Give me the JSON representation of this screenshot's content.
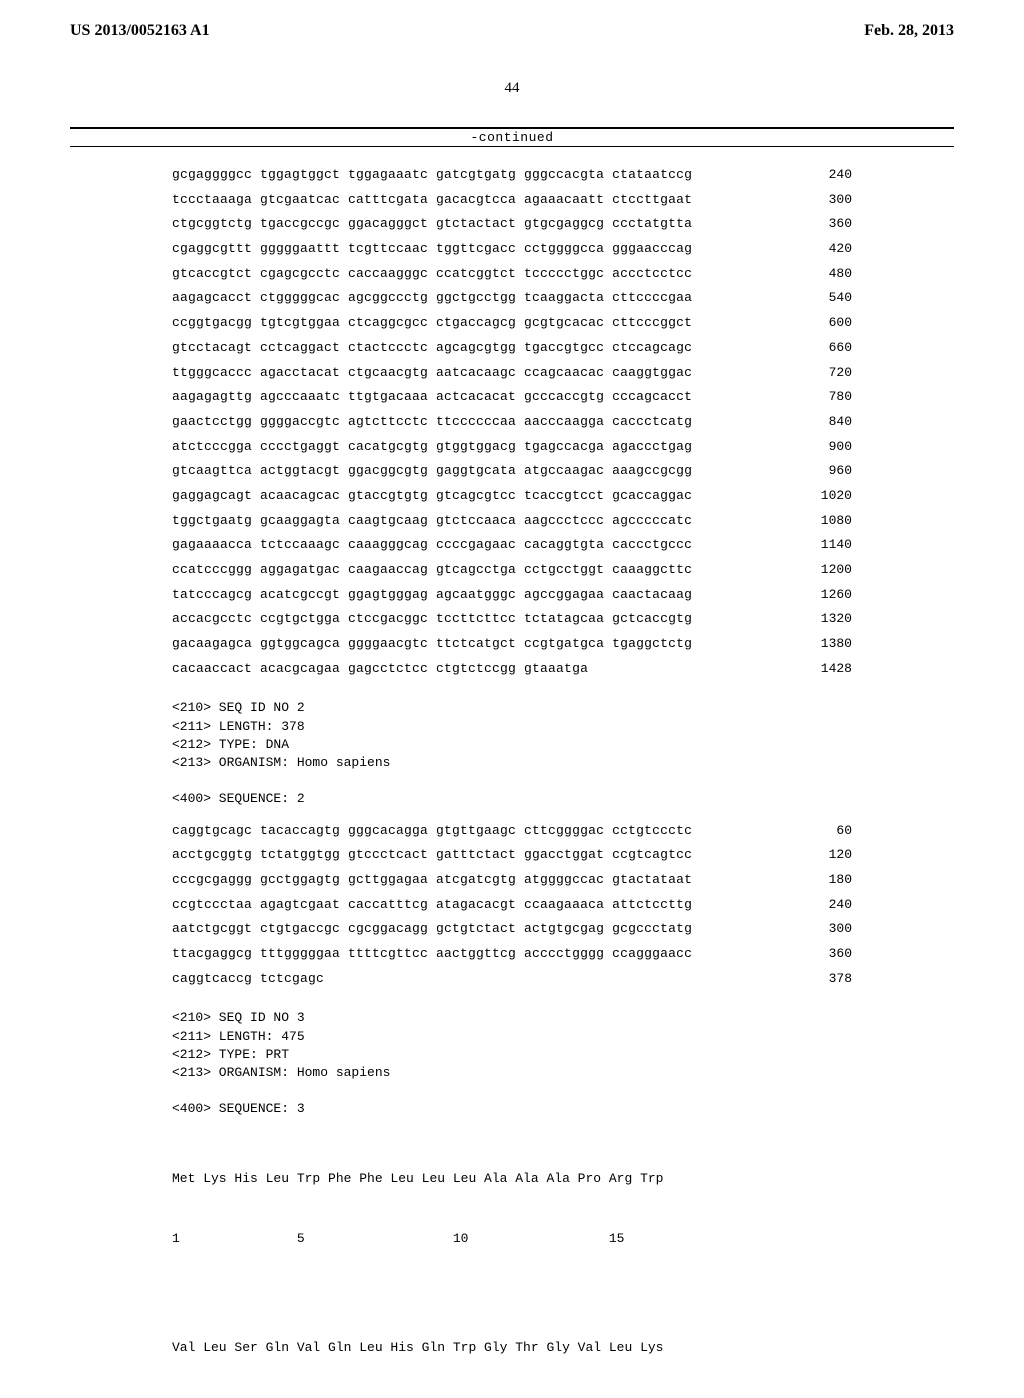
{
  "header": {
    "left": "US 2013/0052163 A1",
    "right": "Feb. 28, 2013"
  },
  "page_number": "44",
  "continued_label": "-continued",
  "seq1": {
    "rows": [
      {
        "t": "gcgaggggcc tggagtggct tggagaaatc gatcgtgatg gggccacgta ctataatccg",
        "p": "240"
      },
      {
        "t": "tccctaaaga gtcgaatcac catttcgata gacacgtcca agaaacaatt ctccttgaat",
        "p": "300"
      },
      {
        "t": "ctgcggtctg tgaccgccgc ggacagggct gtctactact gtgcgaggcg ccctatgtta",
        "p": "360"
      },
      {
        "t": "cgaggcgttt gggggaattt tcgttccaac tggttcgacc cctggggcca gggaacccag",
        "p": "420"
      },
      {
        "t": "gtcaccgtct cgagcgcctc caccaagggc ccatcggtct tccccctggc accctcctcc",
        "p": "480"
      },
      {
        "t": "aagagcacct ctgggggcac agcggccctg ggctgcctgg tcaaggacta cttccccgaa",
        "p": "540"
      },
      {
        "t": "ccggtgacgg tgtcgtggaa ctcaggcgcc ctgaccagcg gcgtgcacac cttcccggct",
        "p": "600"
      },
      {
        "t": "gtcctacagt cctcaggact ctactccctc agcagcgtgg tgaccgtgcc ctccagcagc",
        "p": "660"
      },
      {
        "t": "ttgggcaccc agacctacat ctgcaacgtg aatcacaagc ccagcaacac caaggtggac",
        "p": "720"
      },
      {
        "t": "aagagagttg agcccaaatc ttgtgacaaa actcacacat gcccaccgtg cccagcacct",
        "p": "780"
      },
      {
        "t": "gaactcctgg ggggaccgtc agtcttcctc ttccccccaa aacccaagga caccctcatg",
        "p": "840"
      },
      {
        "t": "atctcccgga cccctgaggt cacatgcgtg gtggtggacg tgagccacga agaccctgag",
        "p": "900"
      },
      {
        "t": "gtcaagttca actggtacgt ggacggcgtg gaggtgcata atgccaagac aaagccgcgg",
        "p": "960"
      },
      {
        "t": "gaggagcagt acaacagcac gtaccgtgtg gtcagcgtcc tcaccgtcct gcaccaggac",
        "p": "1020"
      },
      {
        "t": "tggctgaatg gcaaggagta caagtgcaag gtctccaaca aagccctccc agcccccatc",
        "p": "1080"
      },
      {
        "t": "gagaaaacca tctccaaagc caaagggcag ccccgagaac cacaggtgta caccctgccc",
        "p": "1140"
      },
      {
        "t": "ccatcccggg aggagatgac caagaaccag gtcagcctga cctgcctggt caaaggcttc",
        "p": "1200"
      },
      {
        "t": "tatcccagcg acatcgccgt ggagtgggag agcaatgggc agccggagaa caactacaag",
        "p": "1260"
      },
      {
        "t": "accacgcctc ccgtgctgga ctccgacggc tccttcttcc tctatagcaa gctcaccgtg",
        "p": "1320"
      },
      {
        "t": "gacaagagca ggtggcagca ggggaacgtc ttctcatgct ccgtgatgca tgaggctctg",
        "p": "1380"
      },
      {
        "t": "cacaaccact acacgcagaa gagcctctcc ctgtctccgg gtaaatga",
        "p": "1428"
      }
    ]
  },
  "meta2": "<210> SEQ ID NO 2\n<211> LENGTH: 378\n<212> TYPE: DNA\n<213> ORGANISM: Homo sapiens\n\n<400> SEQUENCE: 2",
  "seq2": {
    "rows": [
      {
        "t": "caggtgcagc tacaccagtg gggcacagga gtgttgaagc cttcggggac cctgtccctc",
        "p": "60"
      },
      {
        "t": "acctgcggtg tctatggtgg gtccctcact gatttctact ggacctggat ccgtcagtcc",
        "p": "120"
      },
      {
        "t": "cccgcgaggg gcctggagtg gcttggagaa atcgatcgtg atggggccac gtactataat",
        "p": "180"
      },
      {
        "t": "ccgtccctaa agagtcgaat caccatttcg atagacacgt ccaagaaaca attctccttg",
        "p": "240"
      },
      {
        "t": "aatctgcggt ctgtgaccgc cgcggacagg gctgtctact actgtgcgag gcgccctatg",
        "p": "300"
      },
      {
        "t": "ttacgaggcg tttgggggaa ttttcgttcc aactggttcg acccctgggg ccagggaacc",
        "p": "360"
      },
      {
        "t": "caggtcaccg tctcgagc",
        "p": "378"
      }
    ]
  },
  "meta3": "<210> SEQ ID NO 3\n<211> LENGTH: 475\n<212> TYPE: PRT\n<213> ORGANISM: Homo sapiens\n\n<400> SEQUENCE: 3",
  "prot3": {
    "line1": "Met Lys His Leu Trp Phe Phe Leu Leu Leu Ala Ala Ala Pro Arg Trp",
    "nums1": "1               5                   10                  15",
    "line2": "Val Leu Ser Gln Val Gln Leu His Gln Trp Gly Thr Gly Val Leu Lys"
  }
}
